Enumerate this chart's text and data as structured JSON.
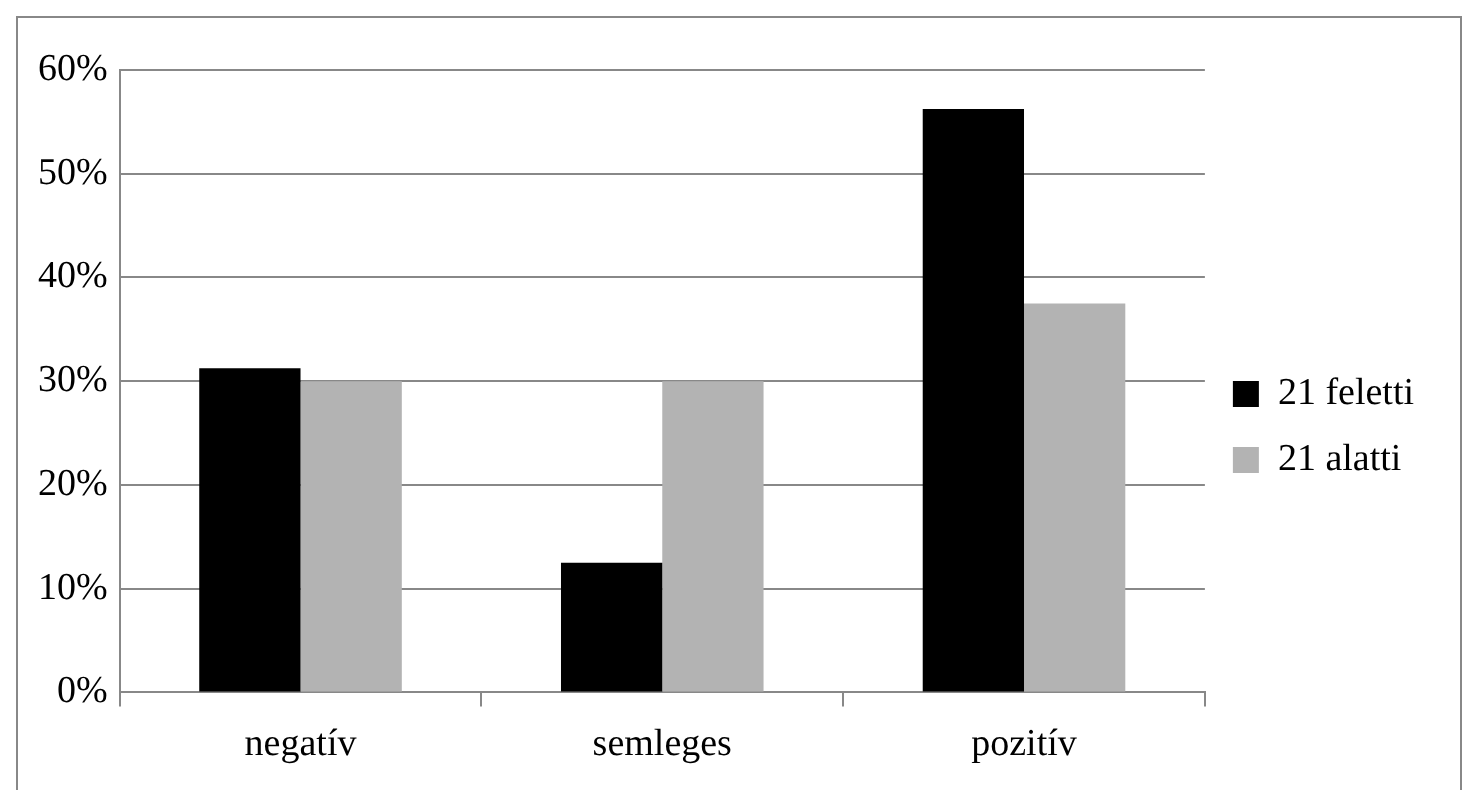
{
  "chart_data": {
    "type": "bar",
    "categories": [
      "negatív",
      "semleges",
      "pozitív"
    ],
    "series": [
      {
        "name": "21 feletti",
        "color": "#000000",
        "values": [
          31.25,
          12.5,
          56.25
        ]
      },
      {
        "name": "21 alatti",
        "color": "#b3b3b3",
        "values": [
          30,
          30,
          37.5
        ]
      }
    ],
    "ylim": [
      0,
      60
    ],
    "yticks": [
      {
        "value": 0,
        "label": "0%"
      },
      {
        "value": 10,
        "label": "10%"
      },
      {
        "value": 20,
        "label": "20%"
      },
      {
        "value": 30,
        "label": "30%"
      },
      {
        "value": 40,
        "label": "40%"
      },
      {
        "value": 50,
        "label": "50%"
      },
      {
        "value": 60,
        "label": "60%"
      }
    ],
    "grid": "y",
    "legend": "right"
  }
}
